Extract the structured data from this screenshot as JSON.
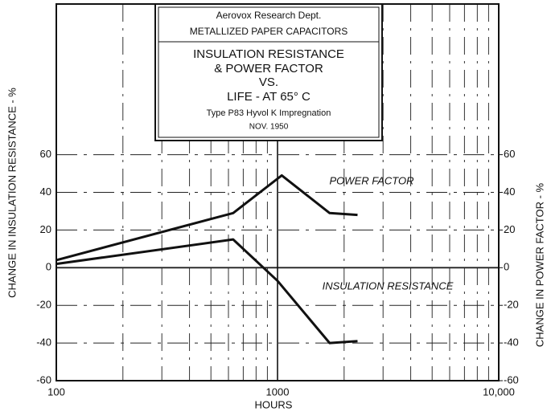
{
  "chart_data": {
    "type": "line",
    "title_lines": [
      "Aerovox Research Dept.",
      "METALLIZED PAPER CAPACITORS",
      "INSULATION RESISTANCE",
      "& POWER FACTOR",
      "VS.",
      "LIFE - AT 65° C",
      "Type P83 Hyvol K Impregnation",
      "NOV. 1950"
    ],
    "xlabel": "HOURS",
    "ylabel": "CHANGE IN INSULATION RESISTANCE - %",
    "y2label": "CHANGE IN POWER FACTOR - %",
    "xlog": true,
    "xlim": [
      100,
      10000
    ],
    "xticks": [
      100,
      1000,
      {
        "value": 10000,
        "label": "10,000"
      }
    ],
    "ylim": [
      -60,
      140
    ],
    "yticks": [
      -60,
      -40,
      -20,
      0,
      20,
      40,
      60
    ],
    "y2lim": [
      -60,
      140
    ],
    "y2ticks": [
      -60,
      -40,
      -20,
      0,
      20,
      40,
      60
    ],
    "grid": true,
    "series": [
      {
        "name": "POWER FACTOR",
        "color": "#111111",
        "axis": "y2",
        "x": [
          100,
          630,
          1045,
          1720,
          2300
        ],
        "values": [
          4,
          29,
          49,
          29,
          28
        ]
      },
      {
        "name": "INSULATION RESISTANCE",
        "color": "#111111",
        "x": [
          100,
          630,
          1000,
          1720,
          2300
        ],
        "values": [
          2,
          15,
          -7,
          -40,
          -39
        ]
      }
    ]
  }
}
